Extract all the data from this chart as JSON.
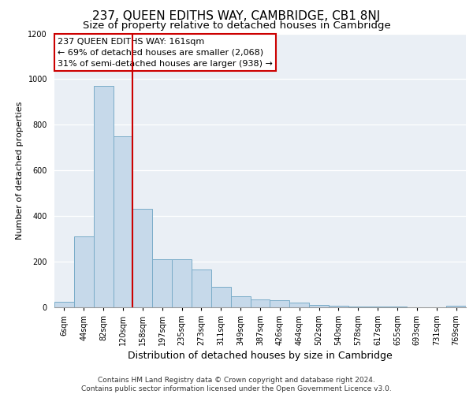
{
  "title": "237, QUEEN EDITHS WAY, CAMBRIDGE, CB1 8NJ",
  "subtitle": "Size of property relative to detached houses in Cambridge",
  "xlabel": "Distribution of detached houses by size in Cambridge",
  "ylabel": "Number of detached properties",
  "footnote1": "Contains HM Land Registry data © Crown copyright and database right 2024.",
  "footnote2": "Contains public sector information licensed under the Open Government Licence v3.0.",
  "bar_labels": [
    "6sqm",
    "44sqm",
    "82sqm",
    "120sqm",
    "158sqm",
    "197sqm",
    "235sqm",
    "273sqm",
    "311sqm",
    "349sqm",
    "387sqm",
    "426sqm",
    "464sqm",
    "502sqm",
    "540sqm",
    "578sqm",
    "617sqm",
    "655sqm",
    "693sqm",
    "731sqm",
    "769sqm"
  ],
  "bar_values": [
    25,
    310,
    970,
    750,
    430,
    210,
    210,
    165,
    90,
    50,
    35,
    30,
    20,
    10,
    8,
    5,
    3,
    2,
    1,
    0,
    8
  ],
  "bar_color": "#c6d9ea",
  "bar_edge_color": "#7aacc8",
  "vline_color": "#cc0000",
  "vline_bar_index": 4,
  "annotation_line1": "237 QUEEN EDITHS WAY: 161sqm",
  "annotation_line2": "← 69% of detached houses are smaller (2,068)",
  "annotation_line3": "31% of semi-detached houses are larger (938) →",
  "annotation_box_edgecolor": "#cc0000",
  "ylim_max": 1200,
  "yticks": [
    0,
    200,
    400,
    600,
    800,
    1000,
    1200
  ],
  "bg_color": "#eaeff5",
  "title_fontsize": 11,
  "subtitle_fontsize": 9.5,
  "ylabel_fontsize": 8,
  "xlabel_fontsize": 9,
  "tick_fontsize": 7,
  "annot_fontsize": 8,
  "footnote_fontsize": 6.5
}
